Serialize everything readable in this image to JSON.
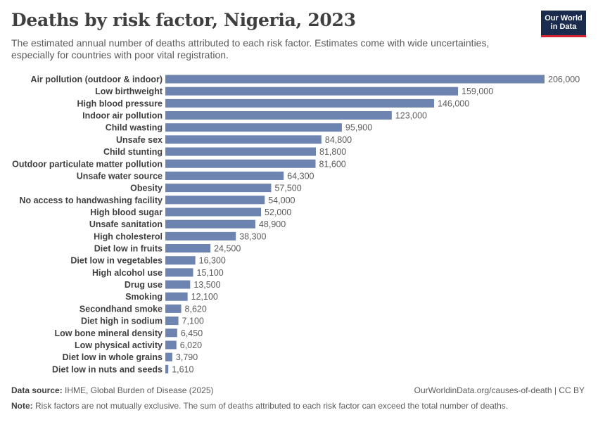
{
  "header": {
    "title": "Deaths by risk factor, Nigeria, 2023",
    "subtitle": "The estimated annual number of deaths attributed to each risk factor. Estimates come with wide uncertainties, especially for countries with poor vital registration.",
    "logo_line1": "Our World",
    "logo_line2": "in Data"
  },
  "colors": {
    "bar": "#6d84b0",
    "logo_bg": "#1a2b4e",
    "logo_accent": "#d4232e",
    "label": "#3f3f3f",
    "value": "#5b5b5b"
  },
  "chart_data": {
    "type": "bar",
    "orientation": "horizontal",
    "title": "Deaths by risk factor, Nigeria, 2023",
    "xlabel": "",
    "ylabel": "",
    "xlim": [
      0,
      206000
    ],
    "categories": [
      "Air pollution (outdoor & indoor)",
      "Low birthweight",
      "High blood pressure",
      "Indoor air pollution",
      "Child wasting",
      "Unsafe sex",
      "Child stunting",
      "Outdoor particulate matter pollution",
      "Unsafe water source",
      "Obesity",
      "No access to handwashing facility",
      "High blood sugar",
      "Unsafe sanitation",
      "High cholesterol",
      "Diet low in fruits",
      "Diet low in vegetables",
      "High alcohol use",
      "Drug use",
      "Smoking",
      "Secondhand smoke",
      "Diet high in sodium",
      "Low bone mineral density",
      "Low physical activity",
      "Diet low in whole grains",
      "Diet low in nuts and seeds"
    ],
    "values": [
      206000,
      159000,
      146000,
      123000,
      95900,
      84800,
      81800,
      81600,
      64300,
      57500,
      54000,
      52000,
      48900,
      38300,
      24500,
      16300,
      15100,
      13500,
      12100,
      8620,
      7100,
      6450,
      6020,
      3790,
      1610
    ],
    "value_labels": [
      "206,000",
      "159,000",
      "146,000",
      "123,000",
      "95,900",
      "84,800",
      "81,800",
      "81,600",
      "64,300",
      "57,500",
      "54,000",
      "52,000",
      "48,900",
      "38,300",
      "24,500",
      "16,300",
      "15,100",
      "13,500",
      "12,100",
      "8,620",
      "7,100",
      "6,450",
      "6,020",
      "3,790",
      "1,610"
    ]
  },
  "footer": {
    "source_label": "Data source:",
    "source_text": "IHME, Global Burden of Disease (2025)",
    "url_text": "OurWorldinData.org/causes-of-death | CC BY",
    "note_label": "Note:",
    "note_text": "Risk factors are not mutually exclusive. The sum of deaths attributed to each risk factor can exceed the total number of deaths."
  }
}
